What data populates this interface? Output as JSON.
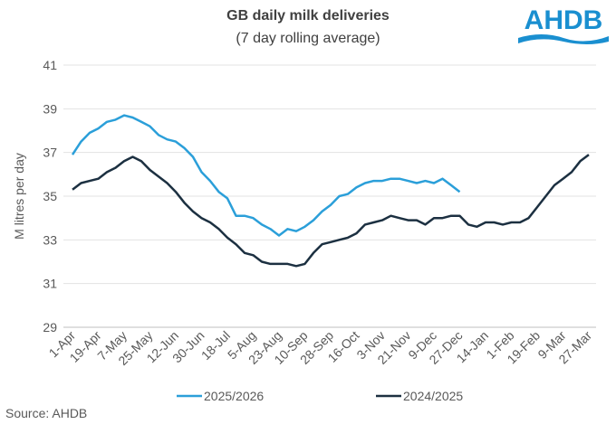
{
  "chart_data": {
    "type": "line",
    "title": "GB daily milk deliveries",
    "subtitle": "(7 day rolling average)",
    "logo": "AHDB",
    "y_label": "M litres per day",
    "source": "Source: AHDB",
    "categories": [
      "1-Apr",
      null,
      null,
      "19-Apr",
      null,
      null,
      "7-May",
      null,
      null,
      "25-May",
      null,
      null,
      "12-Jun",
      null,
      null,
      "30-Jun",
      null,
      null,
      "18-Jul",
      null,
      null,
      "5-Aug",
      null,
      null,
      "23-Aug",
      null,
      null,
      "10-Sep",
      null,
      null,
      "28-Sep",
      null,
      null,
      "16-Oct",
      null,
      null,
      "3-Nov",
      null,
      null,
      "21-Nov",
      null,
      null,
      "9-Dec",
      null,
      null,
      "27-Dec",
      null,
      null,
      "14-Jan",
      null,
      null,
      "1-Feb",
      null,
      null,
      "19-Feb",
      null,
      null,
      "9-Mar",
      null,
      null,
      "27-Mar"
    ],
    "series": [
      {
        "name": "2025/2026",
        "color": "#2b9fd9",
        "values": [
          36.9,
          37.5,
          37.9,
          38.1,
          38.4,
          38.5,
          38.7,
          38.6,
          38.4,
          38.2,
          37.8,
          37.6,
          37.5,
          37.2,
          36.8,
          36.1,
          35.7,
          35.2,
          34.9,
          34.1,
          34.1,
          34.0,
          33.7,
          33.5,
          33.2,
          33.5,
          33.4,
          33.6,
          33.9,
          34.3,
          34.6,
          35.0,
          35.1,
          35.4,
          35.6,
          35.7,
          35.7,
          35.8,
          35.8,
          35.7,
          35.6,
          35.7,
          35.6,
          35.8,
          35.5,
          35.2,
          null,
          null,
          null,
          null,
          null,
          null,
          null,
          null,
          null,
          null,
          null,
          null,
          null,
          null,
          null
        ]
      },
      {
        "name": "2024/2025",
        "color": "#1c3041",
        "values": [
          35.3,
          35.6,
          35.7,
          35.8,
          36.1,
          36.3,
          36.6,
          36.8,
          36.6,
          36.2,
          35.9,
          35.6,
          35.2,
          34.7,
          34.3,
          34.0,
          33.8,
          33.5,
          33.1,
          32.8,
          32.4,
          32.3,
          32.0,
          31.9,
          31.9,
          31.9,
          31.8,
          31.9,
          32.4,
          32.8,
          32.9,
          33.0,
          33.1,
          33.3,
          33.7,
          33.8,
          33.9,
          34.1,
          34.0,
          33.9,
          33.9,
          33.7,
          34.0,
          34.0,
          34.1,
          34.1,
          33.7,
          33.6,
          33.8,
          33.8,
          33.7,
          33.8,
          33.8,
          34.0,
          34.5,
          35.0,
          35.5,
          35.8,
          36.1,
          36.6,
          36.9
        ]
      }
    ],
    "ylim": [
      29,
      41
    ],
    "yticks": [
      29,
      31,
      33,
      35,
      37,
      39,
      41
    ],
    "grid": true,
    "legend": "bottom"
  }
}
